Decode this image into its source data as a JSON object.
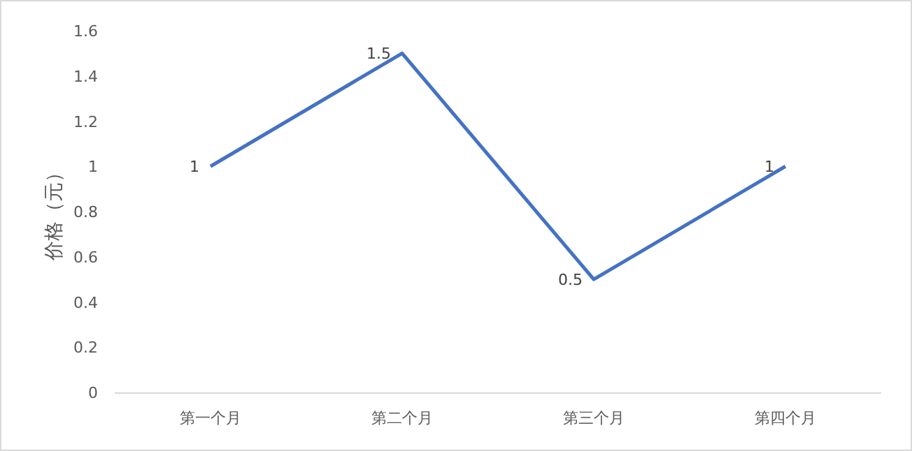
{
  "chart_data": {
    "type": "line",
    "ylabel": "价格（元）",
    "categories": [
      "第一个月",
      "第二个月",
      "第三个月",
      "第四个月"
    ],
    "series": [
      {
        "color": "#4472c4",
        "values": [
          1,
          1.5,
          0.5,
          1
        ]
      }
    ],
    "ylim": [
      0,
      1.6
    ],
    "yticks": [
      0,
      0.2,
      0.4,
      0.6,
      0.8,
      1,
      1.2,
      1.4,
      1.6
    ],
    "data_labels": true,
    "grid": false,
    "marker": "none",
    "line_style": "solid"
  }
}
